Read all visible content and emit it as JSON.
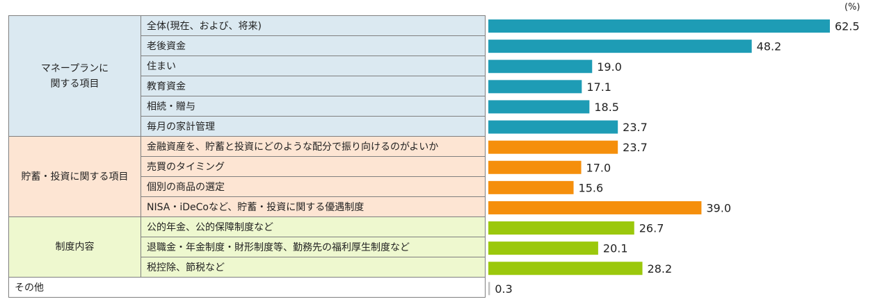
{
  "unit_label": "(%)",
  "colors": {
    "group1": "#1e9cb5",
    "group2": "#f58f0c",
    "group3": "#9bc80c",
    "group4": "#bfbfbf"
  },
  "groups": [
    {
      "label_lines": [
        "マネープランに",
        "関する項目"
      ]
    },
    {
      "label_lines": [
        "貯蓄・投資に関する項目"
      ]
    },
    {
      "label_lines": [
        "制度内容"
      ]
    },
    {
      "label_lines": [
        "その他"
      ]
    }
  ],
  "chart_data": {
    "type": "bar",
    "orientation": "horizontal",
    "categories": [
      "全体(現在、および、将来)",
      "老後資金",
      "住まい",
      "教育資金",
      "相続・贈与",
      "毎月の家計管理",
      "金融資産を、貯蓄と投資にどのような配分で振り向けるのがよいか",
      "売買のタイミング",
      "個別の商品の選定",
      "NISA・iDeCoなど、貯蓄・投資に関する優遇制度",
      "公的年金、公的保障制度など",
      "退職金・年金制度・財形制度等、勤務先の福利厚生制度など",
      "税控除、節税など",
      "その他"
    ],
    "values": [
      62.5,
      48.2,
      19.0,
      17.1,
      18.5,
      23.7,
      23.7,
      17.0,
      15.6,
      39.0,
      26.7,
      20.1,
      28.2,
      0.3
    ],
    "value_labels": [
      "62.5",
      "48.2",
      "19.0",
      "17.1",
      "18.5",
      "23.7",
      "23.7",
      "17.0",
      "15.6",
      "39.0",
      "26.7",
      "20.1",
      "28.2",
      "0.3"
    ],
    "group_of": [
      0,
      0,
      0,
      0,
      0,
      0,
      1,
      1,
      1,
      1,
      2,
      2,
      2,
      3
    ],
    "xlim": [
      0,
      62.5
    ],
    "axis_labels": "none",
    "gridlines": false,
    "legend": "none"
  }
}
